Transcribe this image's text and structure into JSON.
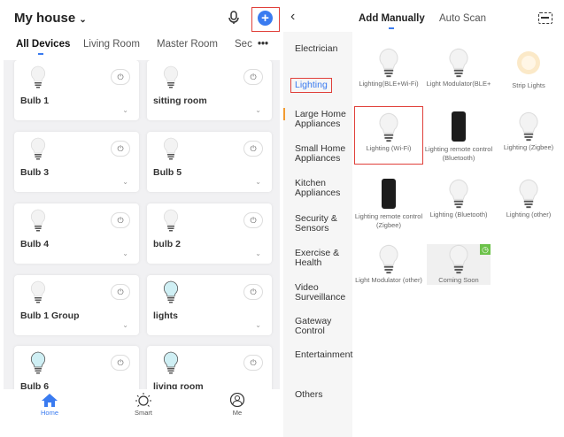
{
  "left": {
    "home_title": "My house",
    "tabs": [
      "All Devices",
      "Living Room",
      "Master Room",
      "Sec"
    ],
    "more": "•••",
    "devices": [
      {
        "name": "Bulb 1",
        "bulb": "grey"
      },
      {
        "name": "sitting room",
        "bulb": "grey"
      },
      {
        "name": "Bulb 3",
        "bulb": "grey"
      },
      {
        "name": "Bulb 5",
        "bulb": "grey"
      },
      {
        "name": "Bulb 4",
        "bulb": "grey"
      },
      {
        "name": "bulb 2",
        "bulb": "grey"
      },
      {
        "name": "Bulb 1 Group",
        "bulb": "grey"
      },
      {
        "name": "lights",
        "bulb": "blue"
      },
      {
        "name": "Bulb 6",
        "bulb": "blue"
      },
      {
        "name": "living room",
        "bulb": "blue"
      }
    ],
    "nav": [
      {
        "label": "Home",
        "icon": "home-icon",
        "active": true
      },
      {
        "label": "Smart",
        "icon": "sun-icon"
      },
      {
        "label": "Me",
        "icon": "user-icon"
      }
    ],
    "accent": "#3a7bf0"
  },
  "right": {
    "tabs": [
      "Add Manually",
      "Auto Scan"
    ],
    "categories": [
      "Electrician",
      "Lighting",
      "Large Home Appliances",
      "Small Home Appliances",
      "Kitchen Appliances",
      "Security & Sensors",
      "Exercise & Health",
      "Video Surveillance",
      "Gateway Control",
      "Entertainment",
      "Others"
    ],
    "selected_category": "Lighting",
    "products": [
      {
        "label": "Lighting(BLE+Wi-Fi)",
        "type": "bulb"
      },
      {
        "label": "Light Modulator(BLE+",
        "type": "bulb"
      },
      {
        "label": "Strip Lights",
        "type": "strip"
      },
      {
        "label": "Lighting (Wi-Fi)",
        "type": "bulb",
        "selected": true
      },
      {
        "label": "Lighting remote control (Bluetooth)",
        "type": "remote"
      },
      {
        "label": "Lighting (Zigbee)",
        "type": "bulb"
      },
      {
        "label": "Lighting remote control (Zigbee)",
        "type": "remote"
      },
      {
        "label": "Lighting (Bluetooth)",
        "type": "bulb"
      },
      {
        "label": "Lighting (other)",
        "type": "bulb"
      },
      {
        "label": "Light Modulator (other)",
        "type": "bulb"
      },
      {
        "label": "Coming Soon",
        "type": "bulb",
        "badge": "clock-icon"
      }
    ],
    "highlight_color": "#e0403a"
  }
}
